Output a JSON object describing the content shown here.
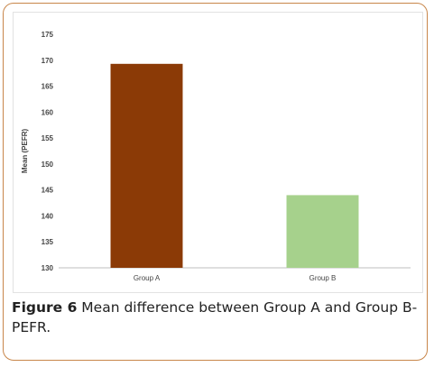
{
  "chart_data": {
    "type": "bar",
    "categories": [
      "Group A",
      "Group B"
    ],
    "values": [
      169.3,
      144
    ],
    "bar_colors": [
      "#8b3a06",
      "#a6d18c"
    ],
    "title": "",
    "xlabel": "",
    "ylabel": "Mean (PEFR)",
    "ylim": [
      130,
      175
    ],
    "yticks": [
      130,
      135,
      140,
      145,
      150,
      155,
      160,
      165,
      170,
      175
    ],
    "grid": false,
    "legend": "none"
  },
  "caption": {
    "label": "Figure 6",
    "text": " Mean difference between Group A and Group B-PEFR."
  },
  "colors": {
    "frame_border": "#c8864a",
    "axis": "#bfbfbf",
    "tick_text": "#444444"
  }
}
